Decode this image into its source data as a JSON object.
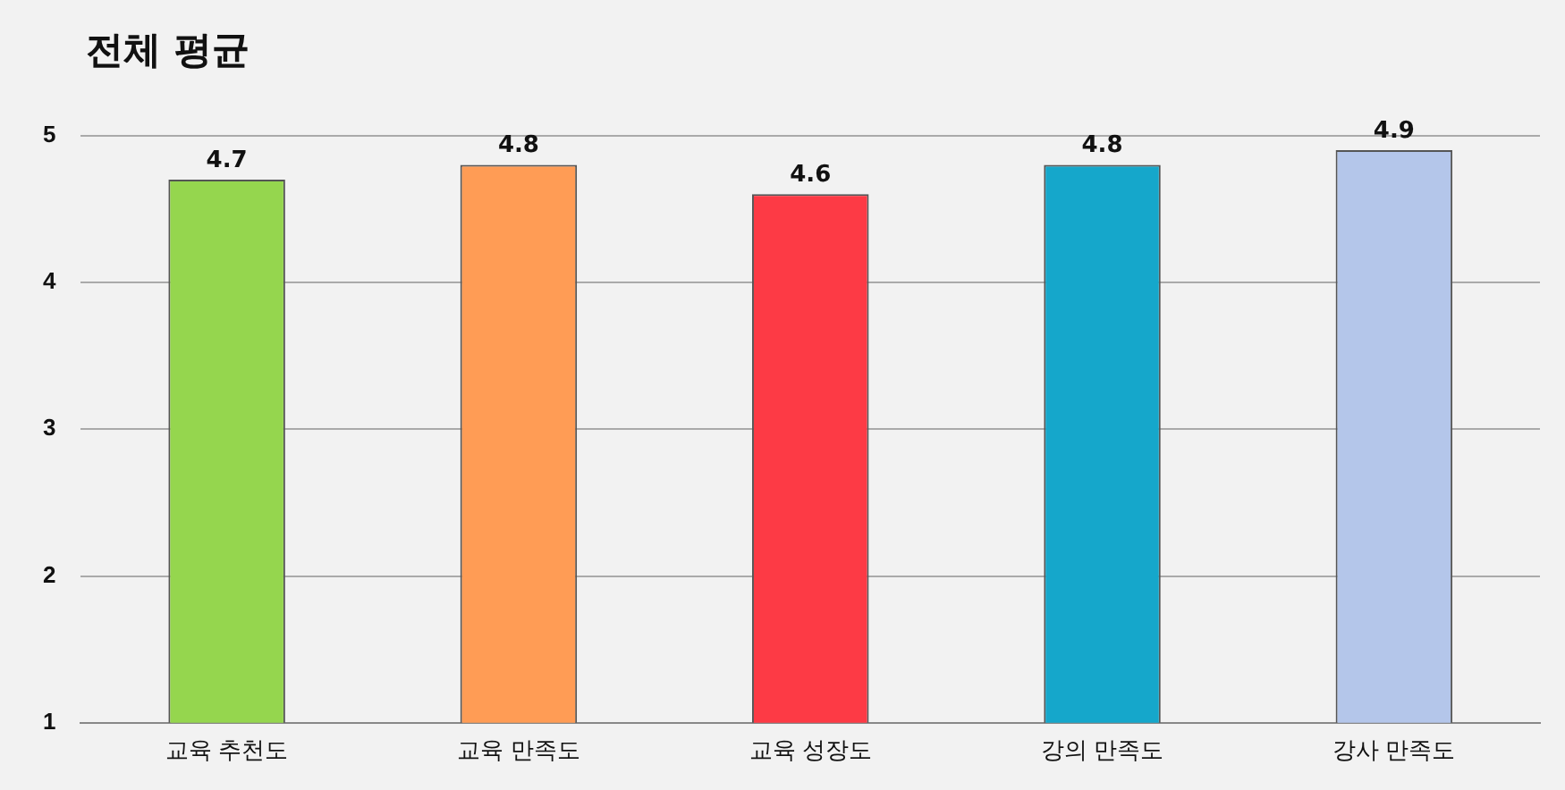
{
  "chart_data": {
    "type": "bar",
    "title": "전체 평균",
    "categories": [
      "교육 추천도",
      "교육 만족도",
      "교육 성장도",
      "강의 만족도",
      "강사 만족도"
    ],
    "values": [
      4.7,
      4.8,
      4.6,
      4.8,
      4.9
    ],
    "colors": [
      "#95d64e",
      "#ff9c55",
      "#fd3a45",
      "#15a7cb",
      "#b4c6ea"
    ],
    "ylim": [
      1,
      5
    ],
    "yticks": [
      1,
      2,
      3,
      4,
      5
    ],
    "grid": "y",
    "data_labels": true,
    "legend": false
  }
}
